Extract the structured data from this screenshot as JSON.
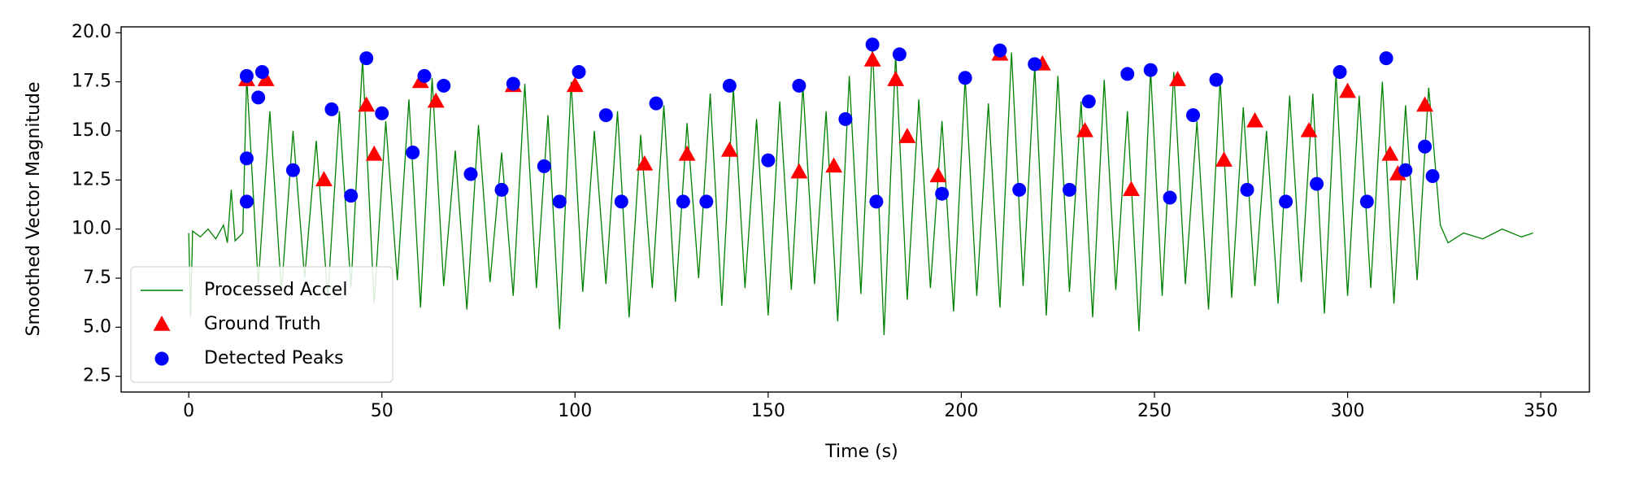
{
  "chart_data": {
    "type": "line",
    "xlabel": "Time (s)",
    "ylabel": "Smoothed Vector Magnitude",
    "xlim": [
      -17.5,
      362.6
    ],
    "ylim": [
      1.7,
      20.3
    ],
    "xticks": [
      0,
      50,
      100,
      150,
      200,
      250,
      300,
      350
    ],
    "yticks": [
      2.5,
      {
        "value": 5,
        "label": "5.0"
      },
      7.5,
      {
        "value": 10,
        "label": "10.0"
      },
      12.5,
      {
        "value": 15,
        "label": "15.0"
      },
      17.5,
      {
        "value": 20,
        "label": "20.0"
      }
    ],
    "legend": "lower left",
    "series": [
      {
        "name": "Processed Accel",
        "type": "line",
        "color": "#008000",
        "x": [
          0,
          0.5,
          1,
          3,
          5,
          7,
          9,
          10,
          11,
          12,
          14,
          15,
          18,
          21,
          24,
          27,
          30,
          33,
          36,
          39,
          42,
          45,
          48,
          51,
          54,
          57,
          60,
          63,
          66,
          69,
          72,
          75,
          78,
          81,
          84,
          87,
          90,
          93,
          96,
          99,
          102,
          105,
          108,
          111,
          114,
          117,
          120,
          123,
          126,
          129,
          132,
          135,
          138,
          141,
          144,
          147,
          150,
          153,
          156,
          159,
          162,
          165,
          168,
          171,
          174,
          177,
          180,
          183,
          186,
          189,
          192,
          195,
          198,
          201,
          204,
          207,
          210,
          213,
          216,
          219,
          222,
          225,
          228,
          231,
          234,
          237,
          240,
          243,
          246,
          249,
          252,
          255,
          258,
          261,
          264,
          267,
          270,
          273,
          276,
          279,
          282,
          285,
          288,
          291,
          294,
          297,
          300,
          303,
          306,
          309,
          312,
          315,
          318,
          321,
          324,
          326,
          330,
          335,
          340,
          345,
          348
        ],
        "values": [
          9.8,
          5.5,
          9.9,
          9.6,
          10.0,
          9.5,
          10.2,
          9.3,
          12.0,
          9.4,
          9.8,
          17.8,
          7.2,
          16.0,
          6.8,
          15.0,
          7.5,
          14.5,
          6.5,
          16.0,
          7.0,
          18.7,
          6.2,
          15.5,
          7.4,
          16.6,
          6.0,
          17.7,
          7.1,
          14.0,
          5.9,
          15.3,
          7.3,
          13.9,
          6.6,
          17.4,
          7.0,
          15.8,
          4.9,
          17.5,
          6.8,
          15.0,
          7.2,
          16.0,
          5.5,
          14.8,
          7.0,
          16.3,
          6.3,
          15.4,
          7.5,
          16.9,
          6.1,
          17.2,
          7.0,
          15.6,
          5.6,
          16.5,
          6.9,
          17.3,
          7.2,
          16.0,
          5.3,
          17.8,
          6.7,
          19.4,
          4.6,
          18.9,
          6.4,
          16.6,
          7.0,
          15.5,
          5.8,
          17.7,
          6.6,
          16.4,
          6.0,
          19.0,
          7.1,
          18.3,
          5.6,
          17.8,
          6.8,
          16.5,
          5.5,
          17.6,
          6.9,
          16.0,
          4.8,
          18.1,
          6.6,
          18.0,
          7.2,
          15.5,
          5.9,
          17.6,
          6.5,
          16.2,
          7.1,
          15.0,
          6.2,
          16.8,
          7.3,
          16.9,
          5.7,
          17.9,
          6.6,
          16.8,
          7.0,
          17.5,
          6.2,
          16.3,
          7.4,
          17.2,
          10.2,
          9.3,
          9.8,
          9.5,
          10.0,
          9.6,
          9.8
        ]
      },
      {
        "name": "Ground Truth",
        "type": "triangle",
        "color": "#ff0000",
        "x": [
          15,
          20,
          35,
          46,
          48,
          60,
          64,
          84,
          100,
          118,
          129,
          140,
          158,
          167,
          177,
          183,
          186,
          194,
          210,
          221,
          232,
          244,
          256,
          268,
          276,
          290,
          300,
          311,
          313,
          320
        ],
        "values": [
          17.6,
          17.6,
          12.5,
          16.3,
          13.8,
          17.5,
          16.5,
          17.3,
          17.3,
          13.3,
          13.8,
          14.0,
          12.9,
          13.2,
          18.6,
          17.6,
          14.7,
          12.7,
          18.9,
          18.4,
          15.0,
          12.0,
          17.6,
          13.5,
          15.5,
          15.0,
          17.0,
          13.8,
          12.8,
          16.3
        ]
      },
      {
        "name": "Detected Peaks",
        "type": "dot",
        "color": "#0000ff",
        "x": [
          15,
          15,
          15,
          18,
          19,
          27,
          37,
          42,
          46,
          50,
          58,
          61,
          66,
          73,
          81,
          84,
          92,
          96,
          101,
          108,
          112,
          121,
          128,
          134,
          140,
          150,
          158,
          170,
          177,
          178,
          184,
          195,
          201,
          210,
          215,
          219,
          228,
          233,
          243,
          249,
          254,
          260,
          266,
          274,
          284,
          292,
          298,
          305,
          310,
          315,
          320,
          322
        ],
        "values": [
          17.8,
          13.6,
          11.4,
          16.7,
          18.0,
          13.0,
          16.1,
          11.7,
          18.7,
          15.9,
          13.9,
          17.8,
          17.3,
          12.8,
          12.0,
          17.4,
          13.2,
          11.4,
          18.0,
          15.8,
          11.4,
          16.4,
          11.4,
          11.4,
          17.3,
          13.5,
          17.3,
          15.6,
          19.4,
          11.4,
          18.9,
          11.8,
          17.7,
          19.1,
          12.0,
          18.4,
          12.0,
          16.5,
          17.9,
          18.1,
          11.6,
          15.8,
          17.6,
          12.0,
          11.4,
          12.3,
          18.0,
          11.4,
          18.7,
          13.0,
          14.2,
          12.7
        ]
      }
    ]
  }
}
